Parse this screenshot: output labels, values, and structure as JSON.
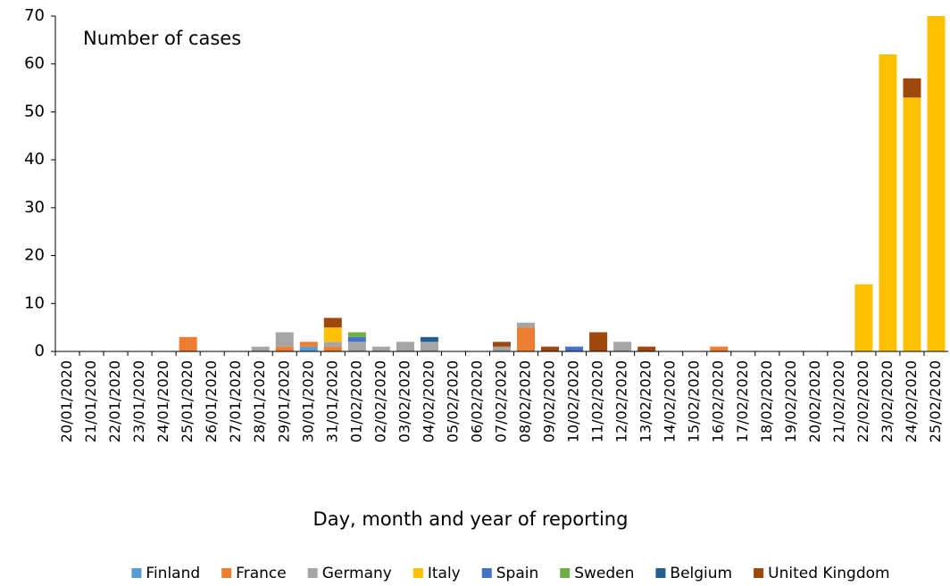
{
  "chart_data": {
    "type": "stacked_bar",
    "annotation": "Number of cases",
    "x_label": "Day, month and year of reporting",
    "categories": [
      "20/01/2020",
      "21/01/2020",
      "22/01/2020",
      "23/01/2020",
      "24/01/2020",
      "25/01/2020",
      "26/01/2020",
      "27/01/2020",
      "28/01/2020",
      "29/01/2020",
      "30/01/2020",
      "31/01/2020",
      "01/02/2020",
      "02/02/2020",
      "03/02/2020",
      "04/02/2020",
      "05/02/2020",
      "06/02/2020",
      "07/02/2020",
      "08/02/2020",
      "09/02/2020",
      "10/02/2020",
      "11/02/2020",
      "12/02/2020",
      "13/02/2020",
      "14/02/2020",
      "15/02/2020",
      "16/02/2020",
      "17/02/2020",
      "18/02/2020",
      "19/02/2020",
      "20/02/2020",
      "21/02/2020",
      "22/02/2020",
      "23/02/2020",
      "24/02/2020",
      "25/02/2020"
    ],
    "series": [
      {
        "name": "Finland",
        "color": "#5b9bd5",
        "values": [
          0,
          0,
          0,
          0,
          0,
          0,
          0,
          0,
          0,
          0,
          1,
          0,
          0,
          0,
          0,
          0,
          0,
          0,
          0,
          0,
          0,
          0,
          0,
          0,
          0,
          0,
          0,
          0,
          0,
          0,
          0,
          0,
          0,
          0,
          0,
          0,
          0
        ]
      },
      {
        "name": "France",
        "color": "#ed7d31",
        "values": [
          0,
          0,
          0,
          0,
          0,
          3,
          0,
          0,
          0,
          1,
          1,
          1,
          0,
          0,
          0,
          0,
          0,
          0,
          0,
          5,
          0,
          0,
          0,
          0,
          0,
          0,
          0,
          1,
          0,
          0,
          0,
          0,
          0,
          0,
          0,
          0,
          0
        ]
      },
      {
        "name": "Germany",
        "color": "#a5a5a5",
        "values": [
          0,
          0,
          0,
          0,
          0,
          0,
          0,
          0,
          1,
          3,
          0,
          1,
          2,
          1,
          2,
          2,
          0,
          0,
          1,
          1,
          0,
          0,
          0,
          2,
          0,
          0,
          0,
          0,
          0,
          0,
          0,
          0,
          0,
          0,
          0,
          0,
          0
        ]
      },
      {
        "name": "Italy",
        "color": "#ffc000",
        "values": [
          0,
          0,
          0,
          0,
          0,
          0,
          0,
          0,
          0,
          0,
          0,
          3,
          0,
          0,
          0,
          0,
          0,
          0,
          0,
          0,
          0,
          0,
          0,
          0,
          0,
          0,
          0,
          0,
          0,
          0,
          0,
          0,
          0,
          14,
          62,
          53,
          70
        ]
      },
      {
        "name": "Spain",
        "color": "#4472c4",
        "values": [
          0,
          0,
          0,
          0,
          0,
          0,
          0,
          0,
          0,
          0,
          0,
          0,
          1,
          0,
          0,
          0,
          0,
          0,
          0,
          0,
          0,
          1,
          0,
          0,
          0,
          0,
          0,
          0,
          0,
          0,
          0,
          0,
          0,
          0,
          0,
          0,
          0
        ]
      },
      {
        "name": "Sweden",
        "color": "#70ad47",
        "values": [
          0,
          0,
          0,
          0,
          0,
          0,
          0,
          0,
          0,
          0,
          0,
          0,
          1,
          0,
          0,
          0,
          0,
          0,
          0,
          0,
          0,
          0,
          0,
          0,
          0,
          0,
          0,
          0,
          0,
          0,
          0,
          0,
          0,
          0,
          0,
          0,
          0
        ]
      },
      {
        "name": "Belgium",
        "color": "#255e91",
        "values": [
          0,
          0,
          0,
          0,
          0,
          0,
          0,
          0,
          0,
          0,
          0,
          0,
          0,
          0,
          0,
          1,
          0,
          0,
          0,
          0,
          0,
          0,
          0,
          0,
          0,
          0,
          0,
          0,
          0,
          0,
          0,
          0,
          0,
          0,
          0,
          0,
          0
        ]
      },
      {
        "name": "United Kingdom",
        "color": "#9e480e",
        "values": [
          0,
          0,
          0,
          0,
          0,
          0,
          0,
          0,
          0,
          0,
          0,
          2,
          0,
          0,
          0,
          0,
          0,
          0,
          1,
          0,
          1,
          0,
          4,
          0,
          1,
          0,
          0,
          0,
          0,
          0,
          0,
          0,
          0,
          0,
          0,
          4,
          0
        ]
      }
    ],
    "ylim": [
      0,
      70
    ],
    "yticks": [
      0,
      10,
      20,
      30,
      40,
      50,
      60,
      70
    ],
    "grid": false,
    "legend": "bottom"
  }
}
